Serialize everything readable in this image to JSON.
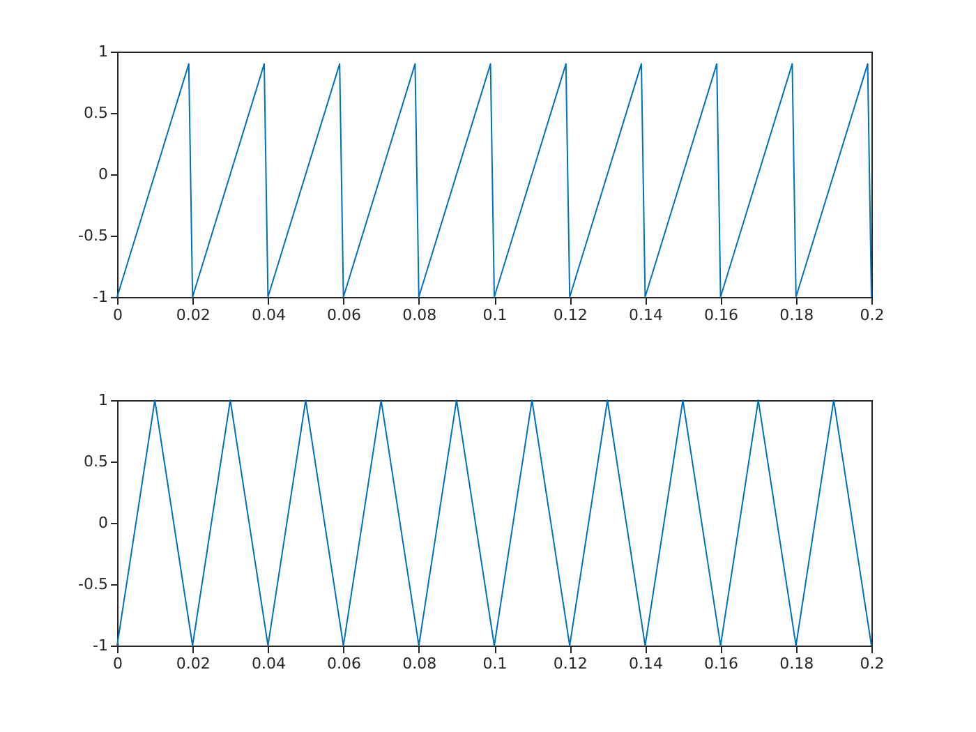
{
  "chart_data": [
    {
      "type": "line",
      "x": [
        0,
        0.019,
        0.02,
        0.039,
        0.04,
        0.059,
        0.06,
        0.079,
        0.08,
        0.099,
        0.1,
        0.119,
        0.12,
        0.139,
        0.14,
        0.159,
        0.16,
        0.179,
        0.18,
        0.199,
        0.2
      ],
      "series": [
        {
          "color": "#0072bd",
          "values": [
            -1,
            0.9,
            -1,
            0.9,
            -1,
            0.9,
            -1,
            0.9,
            -1,
            0.9,
            -1,
            0.9,
            -1,
            0.9,
            -1,
            0.9,
            -1,
            0.9,
            -1,
            0.9,
            -1
          ]
        }
      ],
      "xlim": [
        0,
        0.2
      ],
      "xticks": [
        0,
        0.02,
        0.04,
        0.06,
        0.08,
        0.1,
        0.12,
        0.14,
        0.16,
        0.18,
        0.2
      ],
      "ylim": [
        -1,
        1
      ],
      "yticks": [
        -1,
        -0.5,
        0,
        0.5,
        1
      ],
      "grid": false
    },
    {
      "type": "line",
      "x": [
        0,
        0.01,
        0.02,
        0.03,
        0.04,
        0.05,
        0.06,
        0.07,
        0.08,
        0.09,
        0.1,
        0.11,
        0.12,
        0.13,
        0.14,
        0.15,
        0.16,
        0.17,
        0.18,
        0.19,
        0.2
      ],
      "series": [
        {
          "color": "#0072bd",
          "values": [
            -1,
            1,
            -1,
            1,
            -1,
            1,
            -1,
            1,
            -1,
            1,
            -1,
            1,
            -1,
            1,
            -1,
            1,
            -1,
            1,
            -1,
            1,
            -1
          ]
        }
      ],
      "xlim": [
        0,
        0.2
      ],
      "xticks": [
        0,
        0.02,
        0.04,
        0.06,
        0.08,
        0.1,
        0.12,
        0.14,
        0.16,
        0.18,
        0.2
      ],
      "ylim": [
        -1,
        1
      ],
      "yticks": [
        -1,
        -0.5,
        0,
        0.5,
        1
      ],
      "grid": false
    }
  ]
}
